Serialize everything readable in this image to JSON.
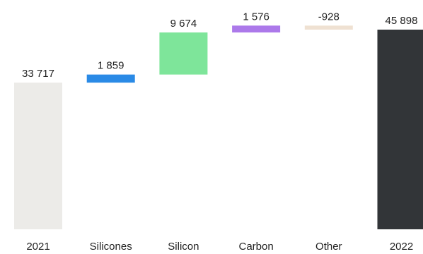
{
  "chart_data": {
    "type": "bar",
    "subtype": "waterfall",
    "categories": [
      "2021",
      "Silicones",
      "Silicon",
      "Carbon",
      "Other",
      "2022"
    ],
    "values": [
      33717,
      1859,
      9674,
      1576,
      -928,
      45898
    ],
    "value_labels": [
      "33 717",
      "1 859",
      "9 674",
      "1 576",
      "-928",
      "45 898"
    ],
    "bar_kinds": [
      "total",
      "delta",
      "delta",
      "delta",
      "delta",
      "total"
    ],
    "colors": [
      "#ecebe8",
      "#2a8ae6",
      "#7ee59a",
      "#ac79ea",
      "#efe1d2",
      "#323538"
    ],
    "ylim": [
      0,
      45898
    ],
    "grid": false,
    "legend": "none",
    "title": "",
    "xlabel": "",
    "ylabel": ""
  }
}
